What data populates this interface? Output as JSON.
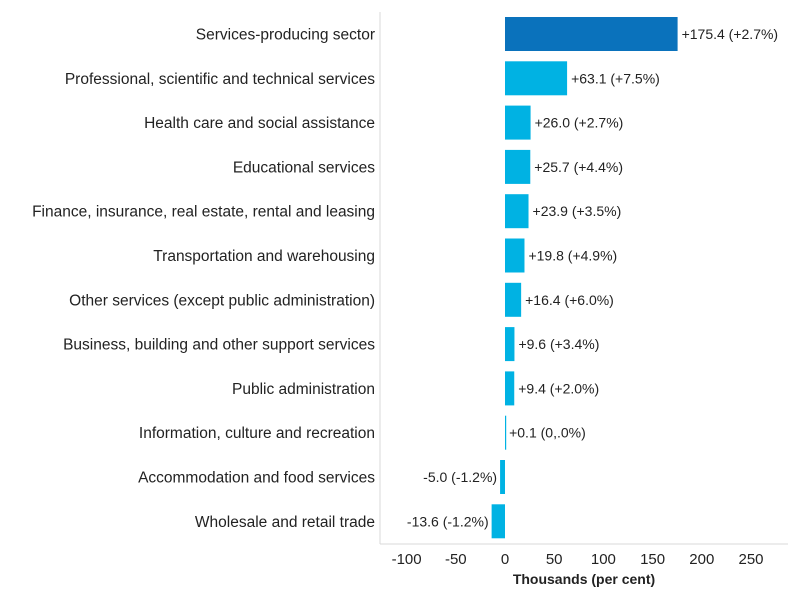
{
  "chart_data": {
    "type": "bar",
    "orientation": "horizontal",
    "categories": [
      "Services-producing sector",
      "Professional, scientific and technical services",
      "Health care and social assistance",
      "Educational services",
      "Finance, insurance, real estate, rental and leasing",
      "Transportation and warehousing",
      "Other services (except public administration)",
      "Business, building and other support services",
      "Public administration",
      "Information, culture and recreation",
      "Accommodation and food services",
      "Wholesale and retail trade"
    ],
    "values": [
      175.4,
      63.1,
      26.0,
      25.7,
      23.9,
      19.8,
      16.4,
      9.6,
      9.4,
      0.1,
      -5.0,
      -13.6
    ],
    "data_labels": [
      "+175.4 (+2.7%)",
      "+63.1 (+7.5%)",
      "+26.0 (+2.7%)",
      "+25.7 (+4.4%)",
      "+23.9 (+3.5%)",
      "+19.8 (+4.9%)",
      "+16.4 (+6.0%)",
      "+9.6 (+3.4%)",
      "+9.4 (+2.0%)",
      "+0.1 (0,.0%)",
      "-5.0 (-1.2%)",
      "-13.6 (-1.2%)"
    ],
    "xticks": [
      -100,
      -50,
      0,
      50,
      100,
      150,
      200,
      250
    ],
    "tick_labels": [
      "-100",
      "-50",
      "0",
      "50",
      "100",
      "150",
      "200",
      "250"
    ],
    "xlim": [
      -125,
      285
    ],
    "xlabel": "Thousands (per cent)",
    "title": "",
    "grid": false,
    "colors": {
      "highlight": "#0a72bc",
      "default": "#00b2e3",
      "axis": "#d9d9d9"
    }
  }
}
